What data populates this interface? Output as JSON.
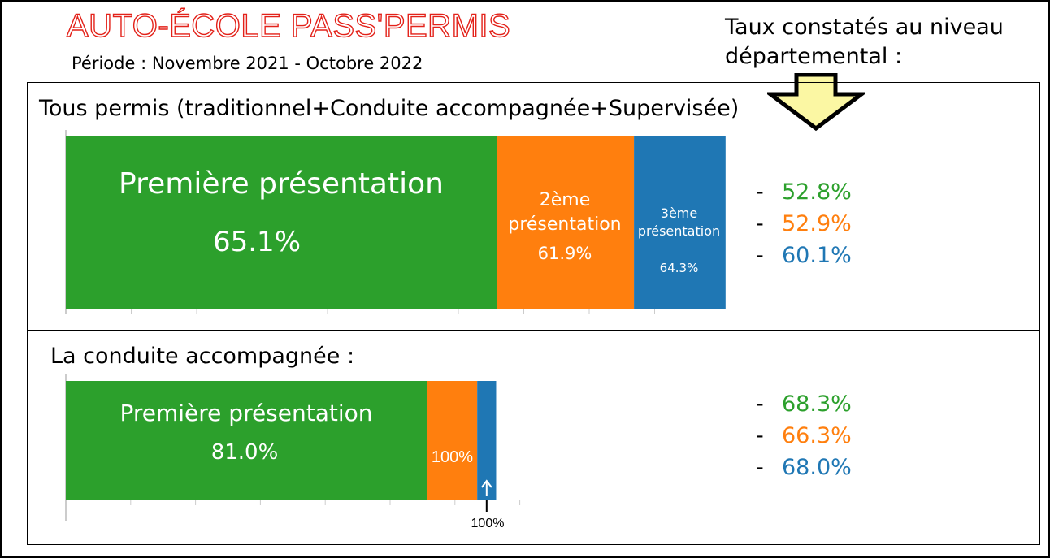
{
  "header": {
    "title": "AUTO-ÉCOLE PASS'PERMIS",
    "period": "Période : Novembre 2021 - Octobre 2022",
    "dept_note_line1": "Taux constatés au niveau",
    "dept_note_line2": "départemental :"
  },
  "colors": {
    "green": "#2ca02c",
    "orange": "#ff7f0e",
    "blue": "#1f77b4",
    "arrow_fill": "#fbf7a3",
    "title_red": "#e32119"
  },
  "chart_data": [
    {
      "type": "bar",
      "orientation": "horizontal-stacked",
      "title": "Tous permis (traditionnel+Conduite accompagnée+Supervisée)",
      "categories": [
        "Première présentation",
        "2ème présentation",
        "3ème présentation"
      ],
      "series": [
        {
          "label_line1": "Première présentation",
          "label_line2": "",
          "value_label": "65.1%",
          "share": 0.654,
          "color": "#2ca02c"
        },
        {
          "label_line1": "2ème",
          "label_line2": "présentation",
          "value_label": "61.9%",
          "share": 0.208,
          "color": "#ff7f0e"
        },
        {
          "label_line1": "3ème",
          "label_line2": "présentation",
          "value_label": "64.3%",
          "share": 0.139,
          "color": "#1f77b4"
        }
      ],
      "department_rates": [
        "52.8%",
        "52.9%",
        "60.1%"
      ]
    },
    {
      "type": "bar",
      "orientation": "horizontal-stacked",
      "title": "La conduite accompagnée :",
      "categories": [
        "Première présentation",
        "2ème présentation",
        "3ème présentation"
      ],
      "series": [
        {
          "label_line1": "Première présentation",
          "value_label": "81.0%",
          "share": 0.838,
          "color": "#2ca02c"
        },
        {
          "value_label": "100%",
          "share": 0.117,
          "color": "#ff7f0e"
        },
        {
          "value_label": "100%",
          "share": 0.044,
          "color": "#1f77b4"
        }
      ],
      "department_rates": [
        "68.3%",
        "66.3%",
        "68.0%"
      ]
    }
  ]
}
